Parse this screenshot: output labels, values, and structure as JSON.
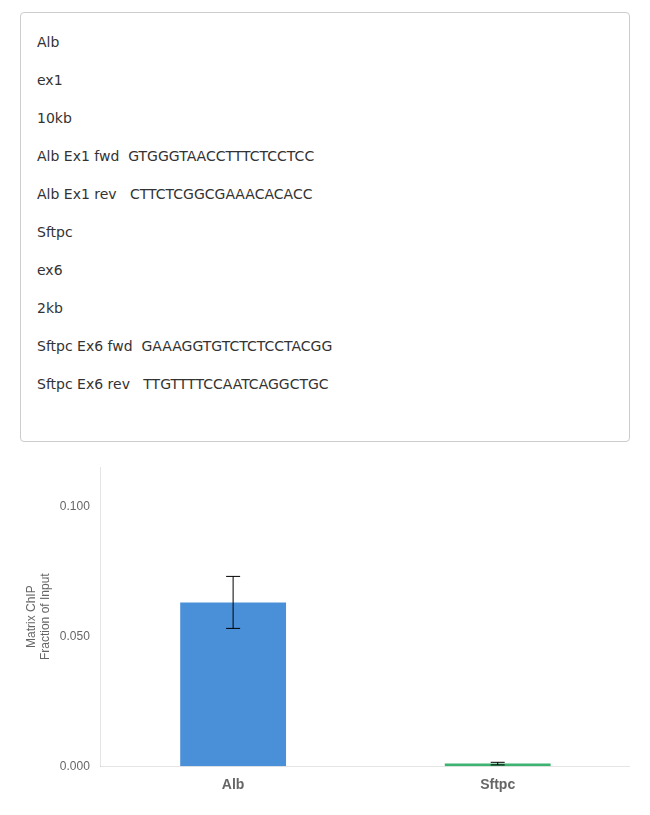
{
  "chart_data": {
    "type": "bar",
    "annotations": [
      "Alb",
      "ex1",
      "10kb",
      "Alb Ex1 fwd  GTGGGTAACCTTTCTCCTCC",
      "Alb Ex1 rev   CTTCTCGGCGAAACACACC",
      "Sftpc",
      "ex6",
      "2kb",
      "Sftpc Ex6 fwd  GAAAGGTGTCTCTCCTACGG",
      "Sftpc Ex6 rev   TTGTTTTCCAATCAGGCTGC"
    ],
    "categories": [
      "Alb",
      "Sftpc"
    ],
    "values": [
      0.063,
      0.001
    ],
    "errors": [
      0.01,
      0.0005
    ],
    "colors": [
      "#4a90d9",
      "#3cb371"
    ],
    "ylabel": [
      "Matrix ChIP",
      "Fraction of Input"
    ],
    "ylim": [
      0,
      0.115
    ],
    "yticks": [
      {
        "value": 0,
        "label": "0.000"
      },
      {
        "value": 0.05,
        "label": "0.050"
      },
      {
        "value": 0.1,
        "label": "0.100"
      }
    ],
    "grid": false
  }
}
